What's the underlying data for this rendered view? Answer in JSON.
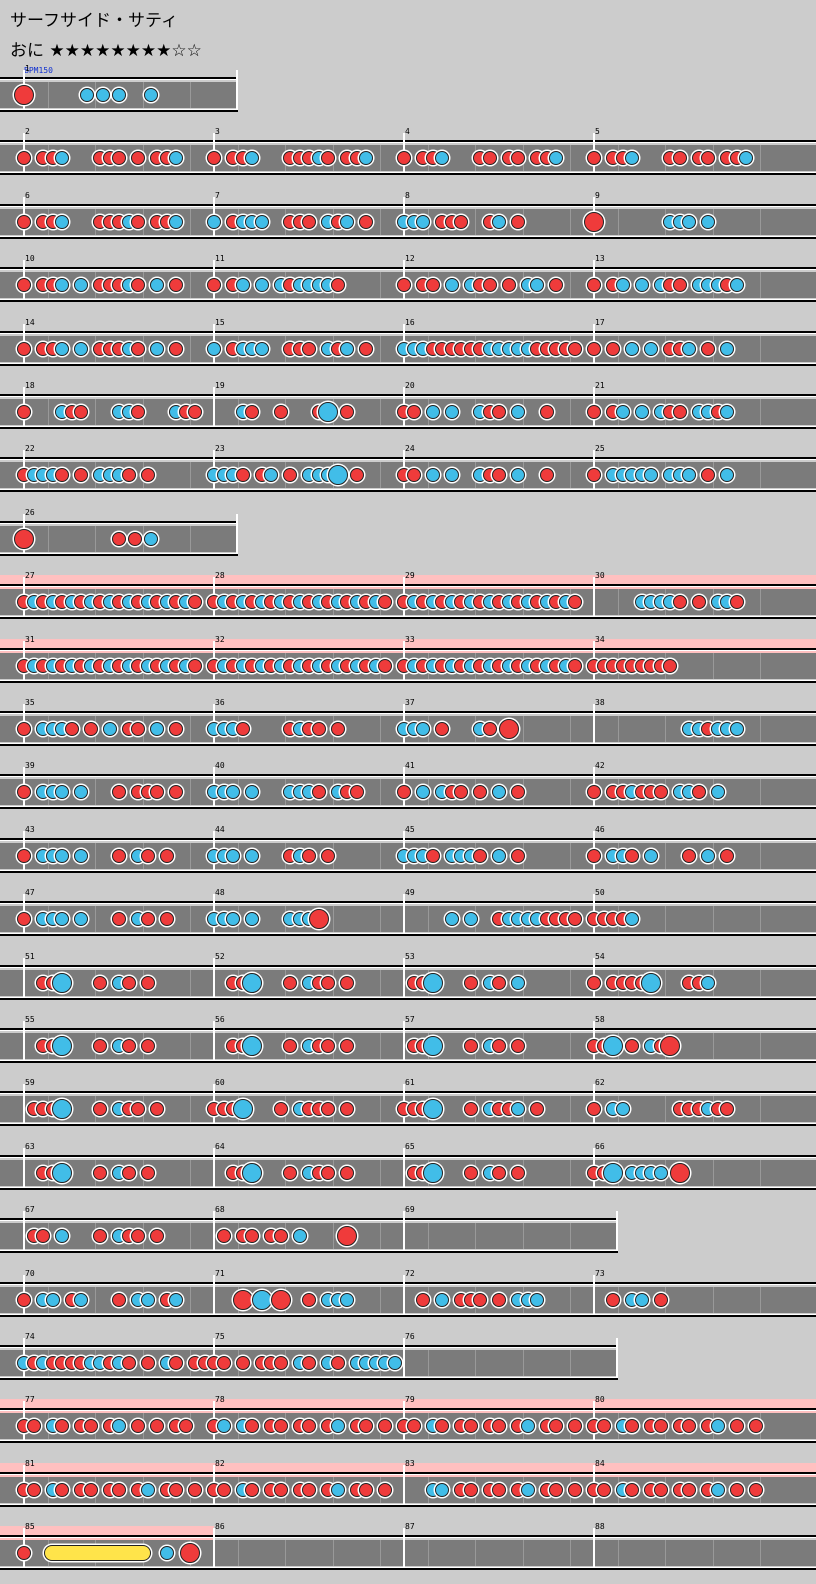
{
  "song": {
    "title": "サーフサイド・サティ",
    "difficulty": "おに ★★★★★★★★☆☆",
    "bpm_label": "BPM150"
  },
  "colors": {
    "background": "#cccccc",
    "lane": "#7b7b7b",
    "don": "#ef3b3b",
    "ka": "#41bde8",
    "gogo": "#ffc0c0",
    "drumroll": "#ffe44a"
  },
  "rows": [
    {
      "measures": [
        {
          "num": "1",
          "notes": "D...kkk.k..."
        }
      ],
      "len": 1
    },
    {
      "measures": [
        {
          "num": "2",
          "notes": "d.ddk...ddd.d.ddk..."
        },
        {
          "num": "3",
          "notes": "d.ddk...dddkd.ddk..."
        },
        {
          "num": "4",
          "notes": "d.ddk...dd.dd.ddk..."
        },
        {
          "num": "5",
          "notes": "d.ddk...dd.dd.ddk..."
        }
      ]
    },
    {
      "measures": [
        {
          "num": "6",
          "notes": "d.ddk...dddkd.ddk..."
        },
        {
          "num": "7",
          "notes": "k.dkkk..ddd.kdk.d..."
        },
        {
          "num": "8",
          "notes": "kkk.ddd..dk.d......."
        },
        {
          "num": "9",
          "notes": "D.......kkk.k......."
        }
      ]
    },
    {
      "measures": [
        {
          "num": "10",
          "notes": "d.ddk.k.dddkd.k.d..."
        },
        {
          "num": "11",
          "notes": "d.dk.k.kdkkkkd......"
        },
        {
          "num": "12",
          "notes": "d.dd.k.kdd.d.kk.d..."
        },
        {
          "num": "13",
          "notes": "d.dk.k.kdd.kkkdk...."
        }
      ]
    },
    {
      "measures": [
        {
          "num": "14",
          "notes": "d.ddk.k.dddkd.k.d..."
        },
        {
          "num": "15",
          "notes": "k.dkkk..ddd.kdk.d..."
        },
        {
          "num": "16",
          "notes": "kkkddddddkkkkkddddd."
        },
        {
          "num": "17",
          "notes": "d.d.k.k.ddk.d.k....."
        }
      ]
    },
    {
      "measures": [
        {
          "num": "18",
          "notes": "d...kdd...kkd...kdd."
        },
        {
          "num": "19",
          "notes": "...kd..d...dK.d....."
        },
        {
          "num": "20",
          "notes": "dd.k.k..kdd.k..d...."
        },
        {
          "num": "21",
          "notes": "d.dk.k.kdd.kkdk....."
        }
      ]
    },
    {
      "measures": [
        {
          "num": "22",
          "notes": "dkkkd.d.kkkd.d......"
        },
        {
          "num": "23",
          "notes": "kkkd.dk.d.kkkK.d...."
        },
        {
          "num": "24",
          "notes": "dd.k.k..kdd.k..d...."
        },
        {
          "num": "25",
          "notes": "d.kkkkk.kkk.d.k....."
        }
      ]
    },
    {
      "measures": [
        {
          "num": "26",
          "notes": "D.....ddk..."
        }
      ],
      "len": 1
    },
    {
      "gogo": true,
      "measures": [
        {
          "num": "27",
          "notes": "dkdkdkdkdkdkdkdkdkd."
        },
        {
          "num": "28",
          "notes": "dkdkdkdkdkdkdkdkdkd."
        },
        {
          "num": "29",
          "notes": "dkdkdkdkdkdkdkdkdkd."
        },
        {
          "num": "30",
          "notes": ".....kkkkd.d.kkd...."
        }
      ]
    },
    {
      "gogo": true,
      "measures": [
        {
          "num": "31",
          "notes": "dkdkdkdkdkdkdkdkdkd."
        },
        {
          "num": "32",
          "notes": "dkdkdkdkdkdkdkdkdkd."
        },
        {
          "num": "33",
          "notes": "dkdkdkdkdkdkdkdkdkd."
        },
        {
          "num": "34",
          "notes": "ddddddddd..........."
        }
      ]
    },
    {
      "measures": [
        {
          "num": "35",
          "notes": "d.kkkd.d.k.dd.k.d..."
        },
        {
          "num": "36",
          "notes": "kkkd....dkdd.d......"
        },
        {
          "num": "37",
          "notes": "kkk.d...kd.D........"
        },
        {
          "num": "38",
          "notes": "..........kkdkkk...."
        }
      ]
    },
    {
      "measures": [
        {
          "num": "39",
          "notes": "d.kkk.k...d.ddd.d..."
        },
        {
          "num": "40",
          "notes": "kkk.k...kkkd.kdd...."
        },
        {
          "num": "41",
          "notes": "d.k.kdd.d.k.d......."
        },
        {
          "num": "42",
          "notes": "d.ddkddd.kkd.k......"
        }
      ]
    },
    {
      "measures": [
        {
          "num": "43",
          "notes": "d.kkk.k...d.kd.d...."
        },
        {
          "num": "44",
          "notes": "kkk.k...dkd.d......."
        },
        {
          "num": "45",
          "notes": "kkkd.kkkd.k.d......."
        },
        {
          "num": "46",
          "notes": "d.kkd.k...d.k.d....."
        }
      ]
    },
    {
      "measures": [
        {
          "num": "47",
          "notes": "d.kkk.k...d.kd.d...."
        },
        {
          "num": "48",
          "notes": "kkk.k...kkkD........"
        },
        {
          "num": "49",
          "notes": ".....k.k..dkkkkdddd."
        },
        {
          "num": "50",
          "notes": "ddddk..............."
        }
      ]
    },
    {
      "measures": [
        {
          "num": "51",
          "notes": "..ddK...d.kd.d......"
        },
        {
          "num": "52",
          "notes": "..ddK...d.kdd.d....."
        },
        {
          "num": "53",
          "notes": ".ddK...d.kd.k......."
        },
        {
          "num": "54",
          "notes": "d.ddddK...ddk......."
        }
      ]
    },
    {
      "measures": [
        {
          "num": "55",
          "notes": "..ddK...d.kd.d......"
        },
        {
          "num": "56",
          "notes": "..ddK...d.kdd.d....."
        },
        {
          "num": "57",
          "notes": ".ddK...d.kd.d......."
        },
        {
          "num": "58",
          "notes": "ddK.d.kdD..........."
        }
      ]
    },
    {
      "measures": [
        {
          "num": "59",
          "notes": ".dddK...d.kdd.d....."
        },
        {
          "num": "60",
          "notes": "dddK...d.kddd.d....."
        },
        {
          "num": "61",
          "notes": "dddK...d.kddk.d....."
        },
        {
          "num": "62",
          "notes": "d.kk.....dddkdd....."
        }
      ]
    },
    {
      "measures": [
        {
          "num": "63",
          "notes": "..ddK...d.kd.d......"
        },
        {
          "num": "64",
          "notes": "..ddK...d.kdd.d....."
        },
        {
          "num": "65",
          "notes": ".ddK...d.kd.d......."
        },
        {
          "num": "66",
          "notes": "ddK.kkkk.D.........."
        }
      ]
    },
    {
      "measures": [
        {
          "num": "67",
          "notes": ".dd.k...d.kdd.d....."
        },
        {
          "num": "68",
          "notes": ".d.dd.dd.k....D....."
        },
        {
          "num": "69",
          "notes": "...................."
        }
      ],
      "len": 3
    },
    {
      "measures": [
        {
          "num": "70",
          "notes": "d.kk.dk...d.kk.dk..."
        },
        {
          "num": "71",
          "notes": "...D.K.D..d.kkk....."
        },
        {
          "num": "72",
          "notes": "..d.k.ddd.d.kkk....."
        },
        {
          "num": "73",
          "notes": "..d.kk.d............"
        }
      ]
    },
    {
      "measures": [
        {
          "num": "74",
          "notes": "kdkddddkkdkd.d.kd.dd"
        },
        {
          "num": "75",
          "notes": "dd.d.ddd.kd.kd.kkkkk"
        },
        {
          "num": "76",
          "notes": "...................."
        }
      ],
      "len": 3
    },
    {
      "gogo": true,
      "measures": [
        {
          "num": "77",
          "notes": "dd.kd.dd.dk.d.d.dd.."
        },
        {
          "num": "78",
          "notes": "dk.kd.dd.dd.dk.dd.d."
        },
        {
          "num": "79",
          "notes": "dd.kd.dd.dd.dk.dd.d."
        },
        {
          "num": "80",
          "notes": "dd.kd.dd.dd.dk.d.d.."
        }
      ]
    },
    {
      "gogo": true,
      "measures": [
        {
          "num": "81",
          "notes": "dd.kd.dd.dd.dk.dd.d."
        },
        {
          "num": "82",
          "notes": "dd.kd.dd.dd.dk.dd.d."
        },
        {
          "num": "83",
          "notes": "...kk.dd.dd.dk.dd.d."
        },
        {
          "num": "84",
          "notes": "dd.kd.dd.dd.dk.d.d.."
        }
      ]
    },
    {
      "gogo": true,
      "gogoEnd": 1,
      "measures": [
        {
          "num": "85",
          "notes": "dRRRRRkD"
        },
        {
          "num": "86",
          "notes": "...................."
        },
        {
          "num": "87",
          "notes": "...................."
        },
        {
          "num": "88",
          "notes": "...................."
        }
      ]
    }
  ]
}
